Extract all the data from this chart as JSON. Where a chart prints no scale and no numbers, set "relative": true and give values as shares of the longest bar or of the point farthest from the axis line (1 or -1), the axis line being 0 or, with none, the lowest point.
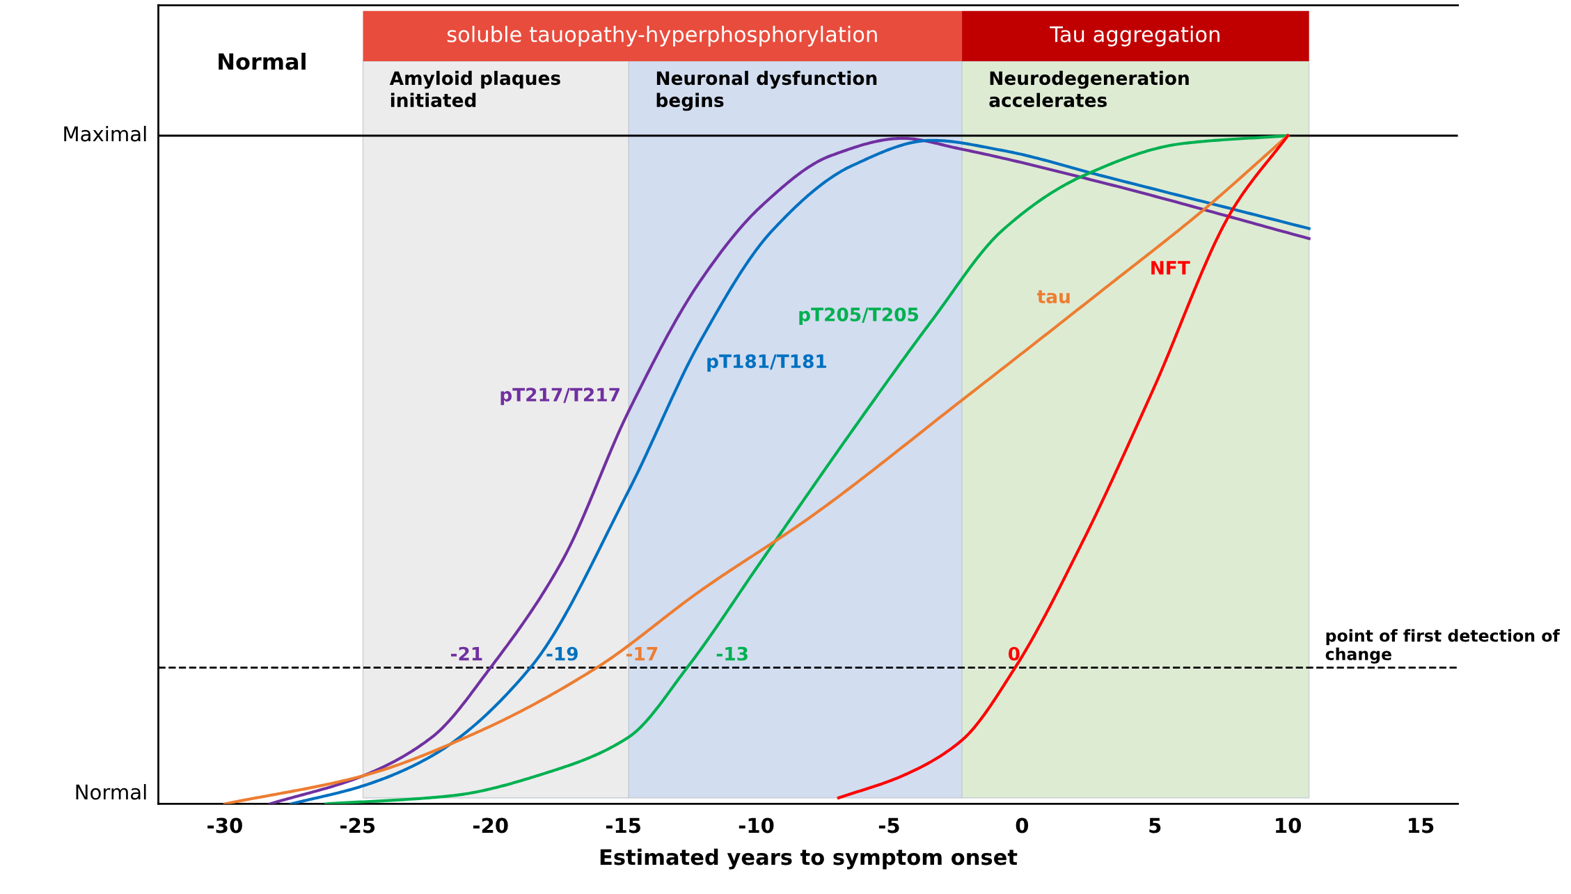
{
  "chart_data": {
    "type": "line",
    "xlabel": "Estimated years to symptom onset",
    "xlim": [
      -32.5,
      16.4
    ],
    "xticks": [
      -30,
      -25,
      -20,
      -15,
      -10,
      -5,
      0,
      5,
      10,
      15
    ],
    "relative": true,
    "grid": false,
    "legend": false,
    "marker": "none",
    "line_style": "solid",
    "series": [
      {
        "name": "pT217/T217",
        "color": "#7030a0",
        "x": [
          -28.3,
          -24.8,
          -22.2,
          -20,
          -17.3,
          -14.8,
          -12.1,
          -9.8,
          -7.2,
          -4.5,
          -2.3,
          3.0,
          10.8
        ],
        "values": [
          0,
          0.042,
          0.1,
          0.204,
          0.364,
          0.588,
          0.783,
          0.895,
          0.97,
          0.996,
          0.98,
          0.93,
          0.846
        ]
      },
      {
        "name": "pT181/T181",
        "color": "#0070c0",
        "x": [
          -27.5,
          -24.8,
          -22.2,
          -18.5,
          -14.8,
          -12.1,
          -9.4,
          -6.4,
          -3.4,
          -0.75,
          3.0,
          10.8
        ],
        "values": [
          0,
          0.027,
          0.072,
          0.204,
          0.469,
          0.693,
          0.858,
          0.955,
          0.993,
          0.978,
          0.94,
          0.861
        ]
      },
      {
        "name": "pT205/T205",
        "color": "#00b050",
        "x": [
          -26.2,
          -21.5,
          -17.7,
          -14.8,
          -12.6,
          -9.8,
          -6.4,
          -3.4,
          -0.75,
          2.3,
          6.0,
          10
        ],
        "values": [
          0,
          0.012,
          0.049,
          0.1,
          0.204,
          0.364,
          0.558,
          0.723,
          0.858,
          0.94,
          0.988,
          1.0
        ]
      },
      {
        "name": "tau",
        "color": "#ed7d31",
        "x": [
          -30,
          -24.8,
          -20.4,
          -16,
          -12.1,
          -7.9,
          -2.3,
          3.0,
          6.8,
          10
        ],
        "values": [
          0,
          0.042,
          0.109,
          0.204,
          0.319,
          0.431,
          0.603,
          0.768,
          0.888,
          1.0
        ]
      },
      {
        "name": "NFT",
        "color": "#ff0000",
        "x": [
          -6.9,
          -4.5,
          -2.3,
          -0.26,
          2.3,
          4.9,
          7.9,
          10
        ],
        "values": [
          0.009,
          0.042,
          0.094,
          0.204,
          0.394,
          0.617,
          0.888,
          1.0
        ]
      }
    ],
    "bands": [
      {
        "axis": "x",
        "from": -24.8,
        "to": -14.8,
        "label": "Amyloid plaques\ninitiated",
        "color": "#ececec"
      },
      {
        "axis": "x",
        "from": -14.8,
        "to": -2.26,
        "label": "Neuronal dysfunction\nbegins",
        "color": "#d2ddf0"
      },
      {
        "axis": "x",
        "from": -2.26,
        "to": 10.8,
        "label": "Neurodegeneration\naccelerates",
        "color": "#deebd3"
      }
    ],
    "ref_lines": [
      {
        "axis": "y",
        "value": 1,
        "color": "#000000",
        "line_style": "solid"
      },
      {
        "axis": "y",
        "value": 0.204,
        "label": "point of first detection of change",
        "color": "#000000",
        "line_style": "dashed"
      }
    ],
    "annotations": [
      "Normal",
      "Maximal",
      "Normal",
      "soluble tauopathy-hyperphosphorylation",
      "Tau aggregation",
      {
        "text": "-21",
        "x": -20.9,
        "y": 0.204
      },
      {
        "text": "-19",
        "x": -17.3,
        "y": 0.204
      },
      {
        "text": "-17",
        "x": -14.3,
        "y": 0.204
      },
      {
        "text": "-13",
        "x": -10.9,
        "y": 0.204
      },
      {
        "text": "0",
        "x": -0.3,
        "y": 0.204
      }
    ]
  }
}
